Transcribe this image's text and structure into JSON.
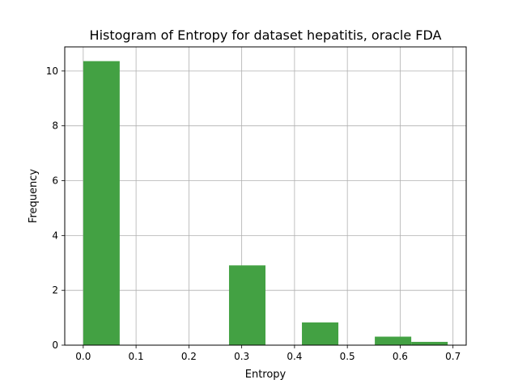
{
  "chart_data": {
    "type": "bar",
    "title": "Histogram of Entropy for dataset hepatitis, oracle FDA",
    "xlabel": "Entropy",
    "ylabel": "Frequency",
    "xlim": [
      -0.035,
      0.725
    ],
    "ylim": [
      0,
      10.88
    ],
    "grid": true,
    "bar_color": "#43a143",
    "x_ticks": [
      {
        "value": 0.0,
        "label": "0.0"
      },
      {
        "value": 0.1,
        "label": "0.1"
      },
      {
        "value": 0.2,
        "label": "0.2"
      },
      {
        "value": 0.3,
        "label": "0.3"
      },
      {
        "value": 0.4,
        "label": "0.4"
      },
      {
        "value": 0.5,
        "label": "0.5"
      },
      {
        "value": 0.6,
        "label": "0.6"
      },
      {
        "value": 0.7,
        "label": "0.7"
      }
    ],
    "y_ticks": [
      {
        "value": 0,
        "label": "0"
      },
      {
        "value": 2,
        "label": "2"
      },
      {
        "value": 4,
        "label": "4"
      },
      {
        "value": 6,
        "label": "6"
      },
      {
        "value": 8,
        "label": "8"
      },
      {
        "value": 10,
        "label": "10"
      }
    ],
    "bins": [
      {
        "x0": 0.0,
        "x1": 0.069,
        "value": 10.36
      },
      {
        "x0": 0.069,
        "x1": 0.138,
        "value": 0
      },
      {
        "x0": 0.138,
        "x1": 0.207,
        "value": 0
      },
      {
        "x0": 0.207,
        "x1": 0.276,
        "value": 0
      },
      {
        "x0": 0.276,
        "x1": 0.345,
        "value": 2.91
      },
      {
        "x0": 0.345,
        "x1": 0.414,
        "value": 0
      },
      {
        "x0": 0.414,
        "x1": 0.483,
        "value": 0.83
      },
      {
        "x0": 0.483,
        "x1": 0.552,
        "value": 0
      },
      {
        "x0": 0.552,
        "x1": 0.621,
        "value": 0.31
      },
      {
        "x0": 0.621,
        "x1": 0.69,
        "value": 0.12
      }
    ]
  }
}
